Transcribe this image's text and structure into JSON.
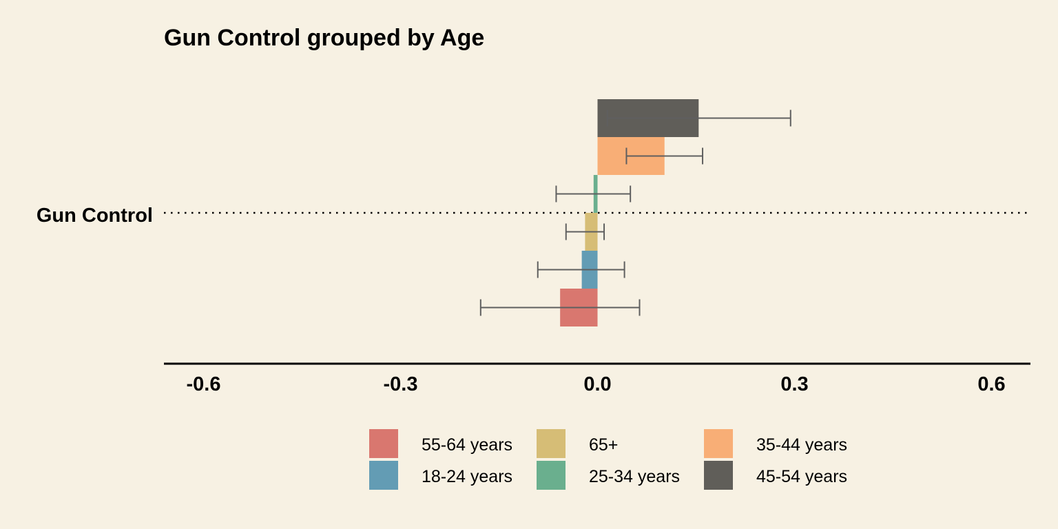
{
  "chart_data": {
    "type": "bar",
    "orientation": "horizontal",
    "title": "Gun Control grouped by Age",
    "category_label": "Gun Control",
    "xlim": [
      -0.66,
      0.66
    ],
    "x_ticks": [
      -0.6,
      -0.3,
      0.0,
      0.3,
      0.6
    ],
    "x_tick_labels": [
      "-0.6",
      "-0.3",
      "0.0",
      "0.3",
      "0.6"
    ],
    "grid": false,
    "legend_position": "bottom",
    "series": [
      {
        "name": "55-64 years",
        "value": -0.057,
        "ci_low": -0.178,
        "ci_high": 0.064,
        "color": "#d9776f"
      },
      {
        "name": "18-24 years",
        "value": -0.024,
        "ci_low": -0.091,
        "ci_high": 0.041,
        "color": "#639cb4"
      },
      {
        "name": "65+",
        "value": -0.019,
        "ci_low": -0.048,
        "ci_high": 0.01,
        "color": "#d6bd76"
      },
      {
        "name": "25-34 years",
        "value": -0.006,
        "ci_low": -0.063,
        "ci_high": 0.05,
        "color": "#6aaf8e"
      },
      {
        "name": "35-44 years",
        "value": 0.102,
        "ci_low": 0.044,
        "ci_high": 0.16,
        "color": "#f8ae76"
      },
      {
        "name": "45-54 years",
        "value": 0.154,
        "ci_low": 0.015,
        "ci_high": 0.294,
        "color": "#605e59"
      }
    ],
    "legend_order": [
      "55-64 years",
      "65+",
      "35-44 years",
      "18-24 years",
      "25-34 years",
      "45-54 years"
    ]
  }
}
